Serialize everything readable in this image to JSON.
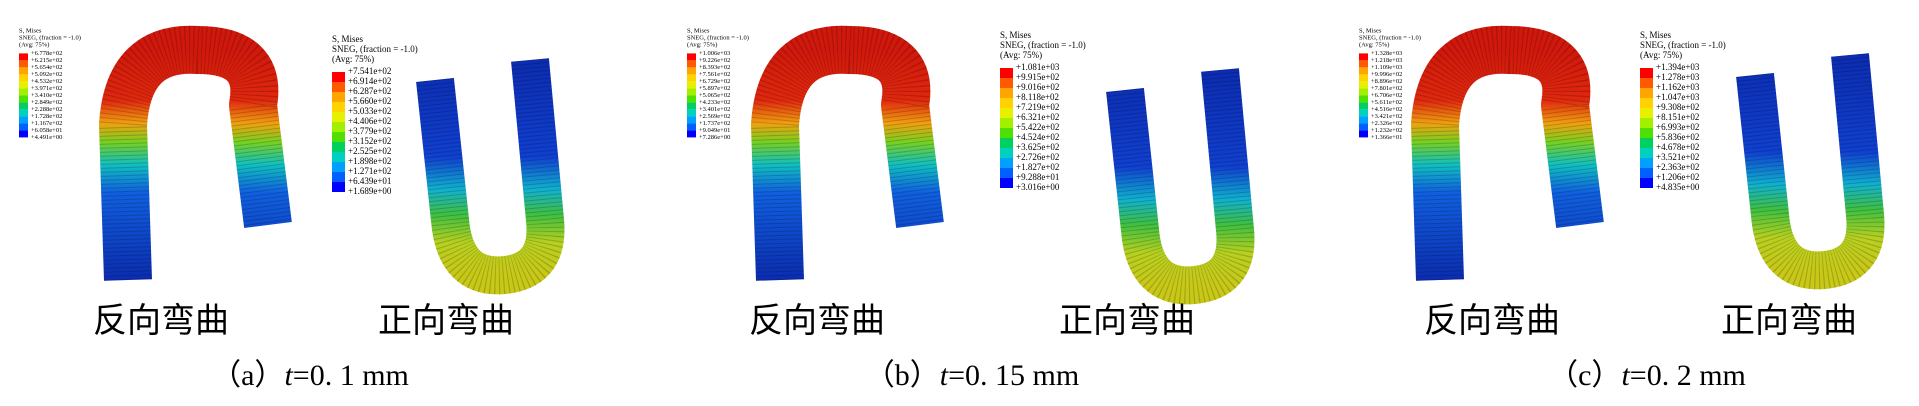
{
  "panels": [
    {
      "caption": {
        "label": "（a）",
        "var": "t",
        "value": "=0. 1 mm"
      },
      "figures": [
        {
          "label": "反向弯曲",
          "legend": {
            "title": "S, Mises",
            "subtitle": "SNEG, (fraction = -1.0)",
            "avg": "(Avg: 75%)",
            "values": [
              "+6.778e+02",
              "+6.215e+02",
              "+5.654e+02",
              "+5.092e+02",
              "+4.532e+02",
              "+3.971e+02",
              "+3.410e+02",
              "+2.849e+02",
              "+2.288e+02",
              "+1.728e+02",
              "+1.167e+02",
              "+6.058e+01",
              "+4.491e+00"
            ]
          }
        },
        {
          "label": "正向弯曲",
          "legend": {
            "title": "S, Mises",
            "subtitle": "SNEG, (fraction = -1.0)",
            "avg": "(Avg: 75%)",
            "values": [
              "+7.541e+02",
              "+6.914e+02",
              "+6.287e+02",
              "+5.660e+02",
              "+5.033e+02",
              "+4.406e+02",
              "+3.779e+02",
              "+3.152e+02",
              "+2.525e+02",
              "+1.898e+02",
              "+1.271e+02",
              "+6.439e+01",
              "+1.689e+00"
            ]
          }
        }
      ]
    },
    {
      "caption": {
        "label": "（b）",
        "var": "t",
        "value": "=0. 15 mm"
      },
      "figures": [
        {
          "label": "反向弯曲",
          "legend": {
            "title": "S, Mises",
            "subtitle": "SNEG, (fraction = -1.0)",
            "avg": "(Avg: 75%)",
            "values": [
              "+1.006e+03",
              "+9.226e+02",
              "+8.393e+02",
              "+7.561e+02",
              "+6.729e+02",
              "+5.897e+02",
              "+5.065e+02",
              "+4.233e+02",
              "+3.401e+02",
              "+2.569e+02",
              "+1.737e+02",
              "+9.049e+01",
              "+7.286e+00"
            ]
          }
        },
        {
          "label": "正向弯曲",
          "legend": {
            "title": "S, Mises",
            "subtitle": "SNEG, (fraction = -1.0)",
            "avg": "(Avg: 75%)",
            "values": [
              "+1.081e+03",
              "+9.915e+02",
              "+9.016e+02",
              "+8.118e+02",
              "+7.219e+02",
              "+6.321e+02",
              "+5.422e+02",
              "+4.524e+02",
              "+3.625e+02",
              "+2.726e+02",
              "+1.827e+02",
              "+9.288e+01",
              "+3.016e+00"
            ]
          }
        }
      ]
    },
    {
      "caption": {
        "label": "（c）",
        "var": "t",
        "value": "=0. 2 mm"
      },
      "figures": [
        {
          "label": "反向弯曲",
          "legend": {
            "title": "S, Mises",
            "subtitle": "SNEG, (fraction = -1.0)",
            "avg": "(Avg: 75%)",
            "values": [
              "+1.328e+03",
              "+1.218e+03",
              "+1.109e+03",
              "+9.996e+02",
              "+8.896e+02",
              "+7.801e+02",
              "+6.706e+02",
              "+5.611e+02",
              "+4.516e+02",
              "+3.421e+02",
              "+2.326e+02",
              "+1.232e+02",
              "+1.366e+01"
            ]
          }
        },
        {
          "label": "正向弯曲",
          "legend": {
            "title": "S, Mises",
            "subtitle": "SNEG, (fraction = -1.0)",
            "avg": "(Avg: 75%)",
            "values": [
              "+1.394e+03",
              "+1.278e+03",
              "+1.162e+03",
              "+1.047e+03",
              "+9.308e+02",
              "+8.151e+02",
              "+6.993e+02",
              "+5.836e+02",
              "+4.678e+02",
              "+3.521e+02",
              "+2.363e+02",
              "+1.206e+02",
              "+4.835e+00"
            ]
          }
        }
      ]
    }
  ]
}
